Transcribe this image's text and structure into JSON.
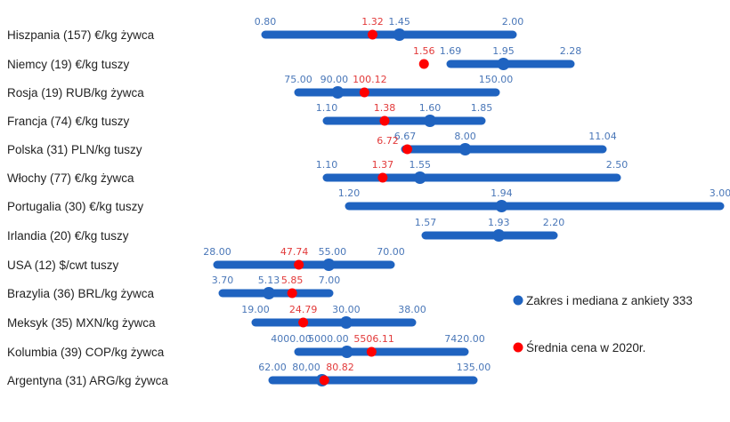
{
  "chart_data": {
    "type": "range-dot",
    "title": "",
    "colors": {
      "range": "#1f63c0",
      "median": "#1f63c0",
      "average": "#ff0000",
      "range_label": "#4a77b8",
      "average_label": "#e23a3a"
    },
    "legend": {
      "placement": "right",
      "items": [
        {
          "label": "Zakres i mediana z ankiety 333",
          "color": "#1f63c0"
        },
        {
          "label": "Średnia cena w 2020r.",
          "color": "#ff0000"
        }
      ]
    },
    "rows": [
      {
        "label": "Hiszpania (157) €/kg żywca",
        "min": "0.80",
        "median": "1.45",
        "max": "2.00",
        "average": "1.32"
      },
      {
        "label": "Niemcy (19) €/kg tuszy",
        "min": "1.69",
        "median": "1.95",
        "max": "2.28",
        "average": "1.56"
      },
      {
        "label": "Rosja (19) RUB/kg żywca",
        "min": "75.00",
        "median": "90.00",
        "max": "150.00",
        "average": "100.12"
      },
      {
        "label": "Francja (74) €/kg tuszy",
        "min": "1.10",
        "median": "1.60",
        "max": "1.85",
        "average": "1.38"
      },
      {
        "label": "Polska (31) PLN/kg tuszy",
        "min": "6.67",
        "median": "8.00",
        "max": "11.04",
        "average": "6.72"
      },
      {
        "label": "Włochy (77) €/kg żywca",
        "min": "1.10",
        "median": "1.55",
        "max": "2.50",
        "average": "1.37"
      },
      {
        "label": "Portugalia (30) €/kg tuszy",
        "min": "1.20",
        "median": "1.94",
        "max": "3.00",
        "average": null
      },
      {
        "label": "Irlandia (20) €/kg tuszy",
        "min": "1.57",
        "median": "1.93",
        "max": "2.20",
        "average": null
      },
      {
        "label": "USA (12) $/cwt tuszy",
        "min": "28.00",
        "median": "55.00",
        "max": "70.00",
        "average": "47.74"
      },
      {
        "label": "Brazylia (36) BRL/kg żywca",
        "min": "3.70",
        "median": "5.13",
        "max": "7.00",
        "average": "5.85"
      },
      {
        "label": "Meksyk (35) MXN/kg żywca",
        "min": "19.00",
        "median": "30.00",
        "max": "38.00",
        "average": "24.79"
      },
      {
        "label": "Kolumbia (39) COP/kg żywca",
        "min": "4000.00",
        "median": "5000.00",
        "max": "7420.00",
        "average": "5506.11"
      },
      {
        "label": "Argentyna (31) ARG/kg żywca",
        "min": "62.00",
        "median": "80,00",
        "max": "135.00",
        "average": "80.82"
      }
    ]
  }
}
